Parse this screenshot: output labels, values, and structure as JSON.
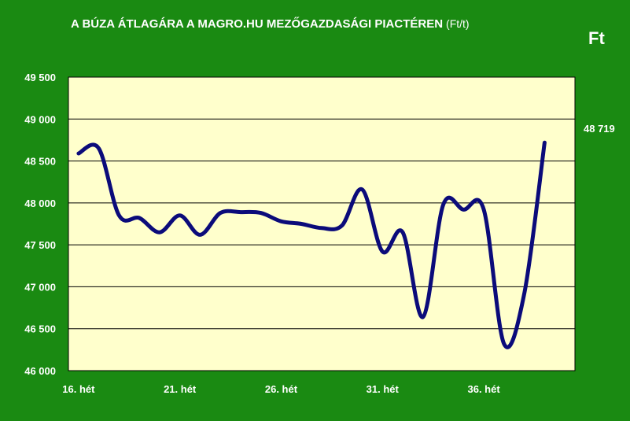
{
  "title": "A BÚZA ÁTLAGÁRA A MAGRO.HU MEZŐGAZDASÁGI PIACTÉREN",
  "title_unit": "(Ft/t)",
  "corner_unit": "Ft",
  "last_value_label": "48 719",
  "colors": {
    "background": "#1a8a12",
    "plot": "#ffffcc",
    "line": "#0b0b7a",
    "text": "#ffffff"
  },
  "chart_data": {
    "type": "line",
    "x": [
      16,
      17,
      18,
      19,
      20,
      21,
      22,
      23,
      24,
      25,
      26,
      27,
      28,
      29,
      30,
      31,
      32,
      33,
      34,
      35,
      36,
      37,
      38,
      39
    ],
    "xticks": [
      16,
      21,
      26,
      31,
      36
    ],
    "xtick_labels": [
      "16. hét",
      "21. hét",
      "26. hét",
      "31. hét",
      "36. hét"
    ],
    "yticks": [
      46000,
      46500,
      47000,
      47500,
      48000,
      48500,
      49000,
      49500
    ],
    "ytick_labels": [
      "46 000",
      "46 500",
      "47 000",
      "47 500",
      "48 000",
      "48 500",
      "49 000",
      "49 500"
    ],
    "ylim": [
      46000,
      49500
    ],
    "series": [
      {
        "values": [
          48590,
          48650,
          47850,
          47820,
          47650,
          47850,
          47620,
          47880,
          47890,
          47880,
          47780,
          47750,
          47700,
          47730,
          48160,
          47420,
          47650,
          46640,
          47980,
          47920,
          47920,
          46320,
          46920,
          48719
        ]
      }
    ]
  }
}
